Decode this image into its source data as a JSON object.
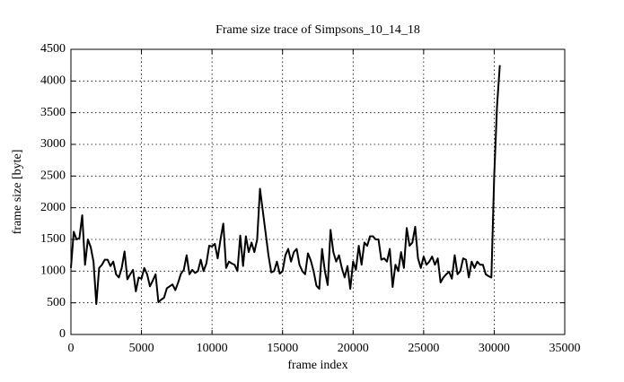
{
  "chart_data": {
    "type": "line",
    "title": "Frame size trace of Simpsons_10_14_18",
    "x_label": "frame index",
    "y_label": "frame size [byte]",
    "color": "#000000",
    "grid": true,
    "xlim": [
      0,
      35000
    ],
    "xticks": [
      0,
      5000,
      10000,
      15000,
      20000,
      25000,
      30000,
      35000
    ],
    "ylim": [
      0,
      4500
    ],
    "yticks": [
      0,
      500,
      1000,
      1500,
      2000,
      2500,
      3000,
      3500,
      4000,
      4500
    ],
    "x": [
      0,
      200,
      400,
      600,
      800,
      1000,
      1200,
      1400,
      1600,
      1800,
      2000,
      2200,
      2400,
      2600,
      2800,
      3000,
      3200,
      3400,
      3600,
      3800,
      4000,
      4200,
      4400,
      4600,
      4800,
      5000,
      5200,
      5400,
      5600,
      5800,
      6000,
      6200,
      6400,
      6600,
      6800,
      7000,
      7200,
      7400,
      7600,
      7800,
      8000,
      8200,
      8400,
      8600,
      8800,
      9000,
      9200,
      9400,
      9600,
      9800,
      10000,
      10200,
      10400,
      10600,
      10800,
      11000,
      11200,
      11400,
      11600,
      11800,
      12000,
      12200,
      12400,
      12600,
      12800,
      13000,
      13200,
      13400,
      13600,
      13800,
      14000,
      14200,
      14400,
      14600,
      14800,
      15000,
      15200,
      15400,
      15600,
      15800,
      16000,
      16200,
      16400,
      16600,
      16800,
      17000,
      17200,
      17400,
      17600,
      17800,
      18000,
      18200,
      18400,
      18600,
      18800,
      19000,
      19200,
      19400,
      19600,
      19800,
      20000,
      20200,
      20400,
      20600,
      20800,
      21000,
      21200,
      21400,
      21600,
      21800,
      22000,
      22200,
      22400,
      22600,
      22800,
      23000,
      23200,
      23400,
      23600,
      23800,
      24000,
      24200,
      24400,
      24600,
      24800,
      25000,
      25200,
      25400,
      25600,
      25800,
      26000,
      26200,
      26400,
      26600,
      26800,
      27000,
      27200,
      27400,
      27600,
      27800,
      28000,
      28200,
      28400,
      28600,
      28800,
      29000,
      29200,
      29400,
      29600,
      29800,
      30000,
      30200,
      30400
    ],
    "values": [
      1050,
      1620,
      1500,
      1520,
      1880,
      1100,
      1500,
      1380,
      1150,
      480,
      1050,
      1100,
      1180,
      1180,
      1080,
      1150,
      950,
      900,
      1050,
      1310,
      870,
      950,
      1020,
      680,
      900,
      880,
      1050,
      950,
      760,
      850,
      950,
      510,
      550,
      580,
      730,
      760,
      790,
      700,
      820,
      960,
      1020,
      1250,
      950,
      1020,
      970,
      1000,
      1180,
      1000,
      1120,
      1400,
      1390,
      1430,
      1200,
      1500,
      1750,
      1050,
      1150,
      1120,
      1100,
      1000,
      1560,
      1080,
      1550,
      1300,
      1450,
      1300,
      1500,
      2300,
      1950,
      1600,
      1250,
      980,
      1000,
      1150,
      960,
      1000,
      1250,
      1350,
      1150,
      1300,
      1350,
      1100,
      1000,
      950,
      1280,
      1170,
      1000,
      770,
      720,
      1350,
      1000,
      780,
      1650,
      1300,
      1150,
      1250,
      1050,
      900,
      1080,
      720,
      1150,
      1020,
      1400,
      1100,
      1450,
      1400,
      1550,
      1550,
      1500,
      1500,
      1180,
      1200,
      1150,
      1350,
      750,
      1100,
      1000,
      1300,
      1050,
      1680,
      1400,
      1450,
      1700,
      1200,
      1050,
      1230,
      1100,
      1150,
      1230,
      1100,
      1200,
      820,
      900,
      950,
      990,
      880,
      1250,
      950,
      1000,
      1200,
      1180,
      900,
      1150,
      1050,
      1150,
      1100,
      1100,
      950,
      920,
      900,
      2500,
      3600,
      4250
    ]
  }
}
